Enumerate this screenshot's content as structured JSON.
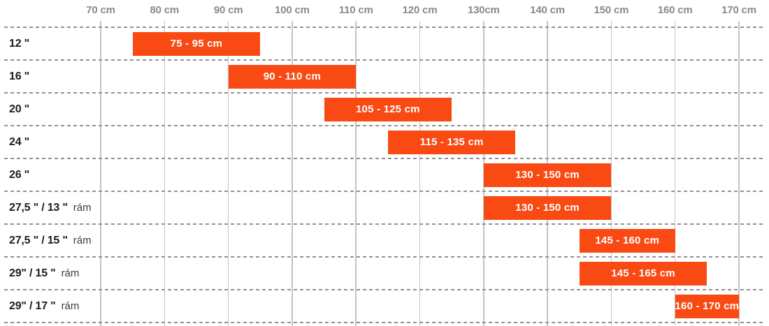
{
  "chart_data": {
    "type": "bar",
    "orientation": "horizontal",
    "title": "",
    "xlabel": "",
    "ylabel": "",
    "grid": true,
    "legend": "none",
    "axis": {
      "unit": "cm",
      "min": 70,
      "max": 170,
      "step": 10,
      "position": "top",
      "tick_labels": [
        "70 cm",
        "80 cm",
        "90 cm",
        "100 cm",
        "110 cm",
        "120 cm",
        "130cm",
        "140 cm",
        "150 cm",
        "160 cm",
        "170 cm"
      ]
    },
    "rows": [
      {
        "label_bold": "12 \"",
        "label_regular": "",
        "range": [
          75,
          95
        ],
        "bar_label": "75 - 95 cm"
      },
      {
        "label_bold": "16 \"",
        "label_regular": "",
        "range": [
          90,
          110
        ],
        "bar_label": "90 - 110 cm"
      },
      {
        "label_bold": "20 \"",
        "label_regular": "",
        "range": [
          105,
          125
        ],
        "bar_label": "105 - 125 cm"
      },
      {
        "label_bold": "24 \"",
        "label_regular": "",
        "range": [
          115,
          135
        ],
        "bar_label": "115 - 135 cm"
      },
      {
        "label_bold": "26 \"",
        "label_regular": "",
        "range": [
          130,
          150
        ],
        "bar_label": "130 - 150 cm"
      },
      {
        "label_bold": "27,5 \" / 13 \"",
        "label_regular": "rám",
        "range": [
          130,
          150
        ],
        "bar_label": "130 - 150 cm"
      },
      {
        "label_bold": "27,5 \" / 15 \"",
        "label_regular": "rám",
        "range": [
          145,
          160
        ],
        "bar_label": "145 - 160 cm"
      },
      {
        "label_bold": "29\" / 15 \"",
        "label_regular": "rám",
        "range": [
          145,
          165
        ],
        "bar_label": "145 - 165 cm"
      },
      {
        "label_bold": "29\" / 17 \"",
        "label_regular": "rám",
        "range": [
          160,
          170
        ],
        "bar_label": "160 - 170 cm"
      }
    ],
    "colors": {
      "bar": "#F94A13",
      "bar_text": "#FFFFFF",
      "axis_text": "#8A8A8C",
      "row_text": "#1D1D1B",
      "gridline": "#C3C3C3",
      "dashed": "#929292",
      "background": "#FFFFFF"
    }
  }
}
